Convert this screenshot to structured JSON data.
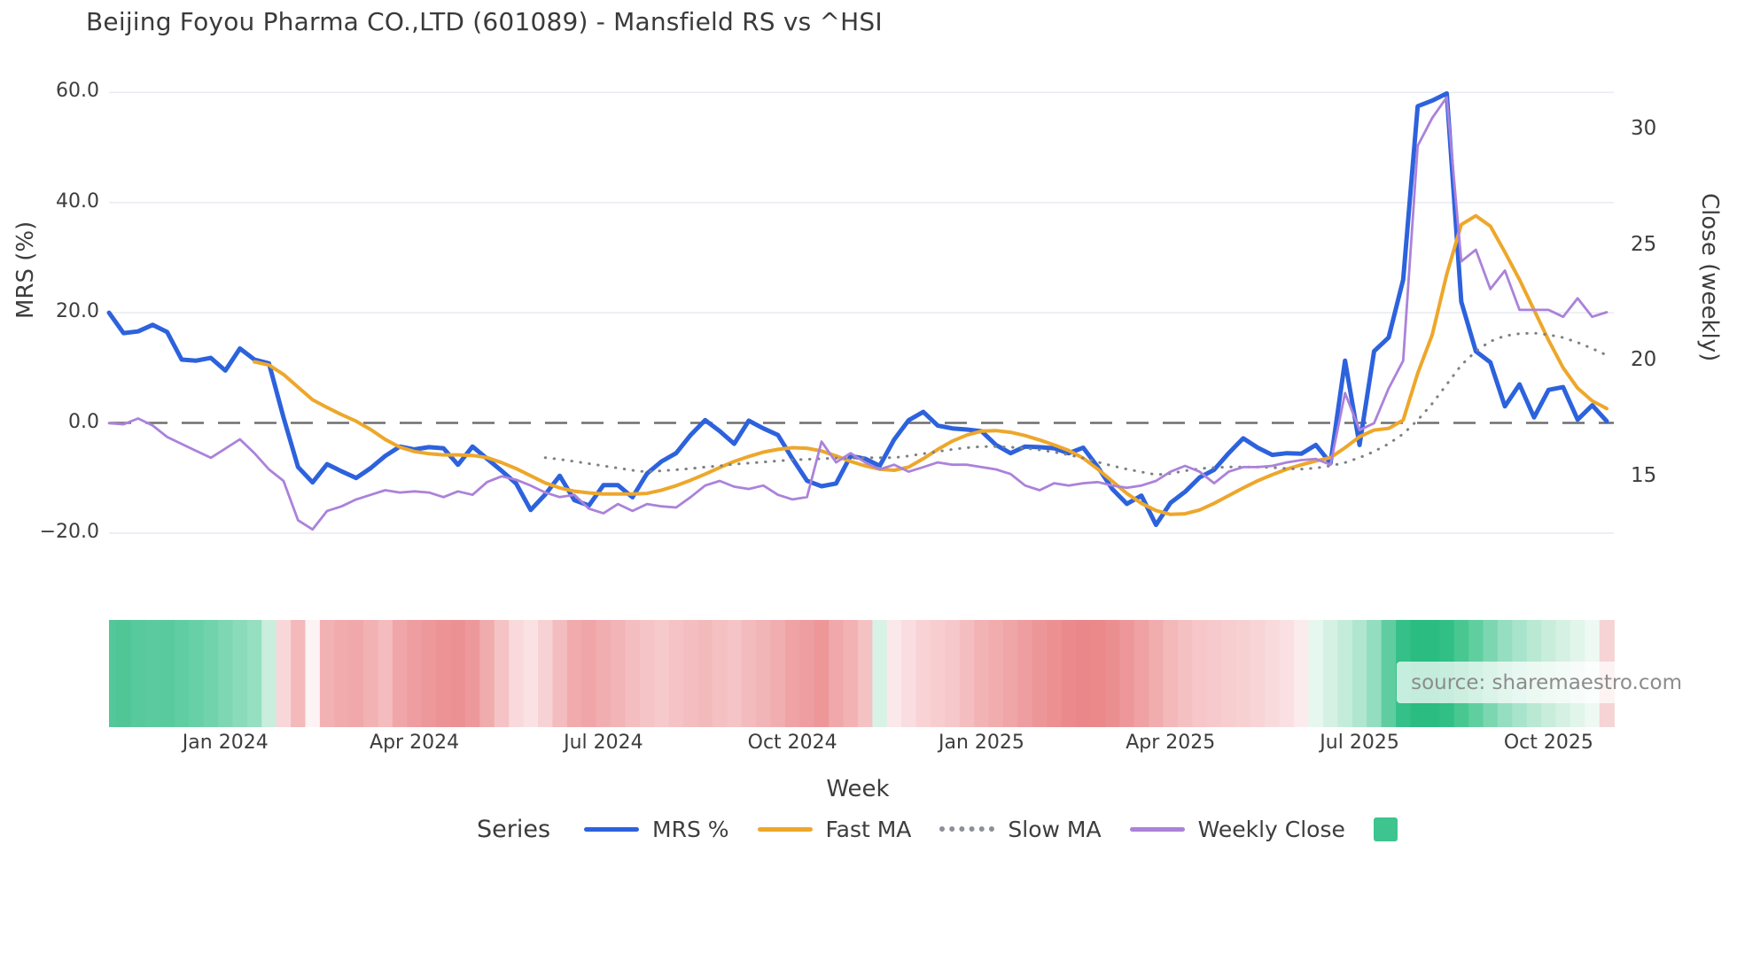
{
  "title": "Beijing Foyou Pharma CO.,LTD (601089) - Mansfield RS vs ^HSI",
  "axes": {
    "left_label": "MRS (%)",
    "right_label": "Close (weekly)",
    "x_label": "Week",
    "left_ticks": [
      {
        "label": "60.0",
        "value": 60
      },
      {
        "label": "40.0",
        "value": 40
      },
      {
        "label": "20.0",
        "value": 20
      },
      {
        "label": "0.0",
        "value": 0
      },
      {
        "label": "−20.0",
        "value": -20
      }
    ],
    "right_ticks": [
      {
        "label": "30",
        "value": 30
      },
      {
        "label": "25",
        "value": 25
      },
      {
        "label": "20",
        "value": 20
      },
      {
        "label": "15",
        "value": 15
      }
    ],
    "x_ticks": [
      {
        "label": "Jan 2024",
        "week": 8
      },
      {
        "label": "Apr 2024",
        "week": 21
      },
      {
        "label": "Jul 2024",
        "week": 34
      },
      {
        "label": "Oct 2024",
        "week": 47
      },
      {
        "label": "Jan 2025",
        "week": 60
      },
      {
        "label": "Apr 2025",
        "week": 73
      },
      {
        "label": "Jul 2025",
        "week": 86
      },
      {
        "label": "Oct 2025",
        "week": 99
      }
    ]
  },
  "legend": {
    "title": "Series",
    "items": [
      {
        "label": "MRS %",
        "color": "#2d62dd",
        "style": "solid"
      },
      {
        "label": "Fast MA",
        "color": "#edа72b",
        "style": "solid"
      },
      {
        "label": "Slow MA",
        "color": "#8b8f98",
        "style": "dotted"
      },
      {
        "label": "Weekly Close",
        "color": "#ab82da",
        "style": "solid"
      }
    ],
    "heatmap_swatch_color": "#3ec48e"
  },
  "source": "source: sharemaestro.com",
  "chart_data": {
    "type": "line",
    "title": "Beijing Foyou Pharma CO.,LTD (601089) - Mansfield RS vs ^HSI",
    "xlabel": "Week",
    "ylabel_left": "MRS (%)",
    "ylabel_right": "Close (weekly)",
    "n_weeks": 104,
    "x_start_week_of": "Nov 2023",
    "grid": true,
    "zero_line": true,
    "legend_position": "bottom",
    "left_ylim": [
      -25,
      63.5
    ],
    "right_ylim": [
      13.4,
      32.5
    ],
    "series": [
      {
        "name": "MRS %",
        "axis": "left",
        "color": "#2d62dd",
        "style": "solid",
        "width": 5,
        "values": [
          20.0,
          16.3,
          16.6,
          17.8,
          16.5,
          11.5,
          11.3,
          11.8,
          9.5,
          13.5,
          11.5,
          10.8,
          1.0,
          -8.0,
          -10.8,
          -7.5,
          -8.8,
          -10.0,
          -8.2,
          -6.0,
          -4.3,
          -4.8,
          -4.4,
          -4.6,
          -7.6,
          -4.3,
          -6.5,
          -8.7,
          -11.0,
          -15.8,
          -13.0,
          -9.6,
          -14.0,
          -15.0,
          -11.3,
          -11.3,
          -13.5,
          -9.2,
          -7.0,
          -5.5,
          -2.2,
          0.5,
          -1.5,
          -3.8,
          0.4,
          -1.0,
          -2.2,
          -6.5,
          -10.5,
          -11.5,
          -11.0,
          -6.0,
          -6.5,
          -7.8,
          -3.0,
          0.5,
          2.0,
          -0.5,
          -1.0,
          -1.2,
          -1.5,
          -4.0,
          -5.5,
          -4.3,
          -4.4,
          -4.6,
          -5.5,
          -4.5,
          -8.0,
          -12.0,
          -14.7,
          -13.2,
          -18.5,
          -14.5,
          -12.5,
          -9.9,
          -8.5,
          -5.5,
          -2.8,
          -4.5,
          -5.8,
          -5.5,
          -5.6,
          -4.0,
          -7.3,
          11.3,
          -4.0,
          13.0,
          15.5,
          26.0,
          57.5,
          58.5,
          59.8,
          22.0,
          13.0,
          11.0,
          3.0,
          7.0,
          1.0,
          6.0,
          6.5,
          0.6,
          3.2,
          0.3
        ]
      },
      {
        "name": "Fast MA",
        "axis": "left",
        "color": "#eda72b",
        "style": "solid",
        "width": 4,
        "values": [
          null,
          null,
          null,
          null,
          null,
          null,
          null,
          null,
          null,
          null,
          11.1,
          10.5,
          8.8,
          6.5,
          4.2,
          2.8,
          1.5,
          0.3,
          -1.2,
          -3.0,
          -4.4,
          -5.2,
          -5.6,
          -5.8,
          -5.8,
          -5.9,
          -6.3,
          -7.2,
          -8.3,
          -9.6,
          -10.9,
          -11.8,
          -12.4,
          -12.7,
          -12.9,
          -12.9,
          -12.9,
          -12.8,
          -12.2,
          -11.4,
          -10.4,
          -9.3,
          -8.1,
          -7.0,
          -6.1,
          -5.3,
          -4.8,
          -4.5,
          -4.6,
          -5.1,
          -6.0,
          -7.0,
          -7.8,
          -8.4,
          -8.6,
          -8.0,
          -6.5,
          -4.8,
          -3.3,
          -2.2,
          -1.5,
          -1.4,
          -1.7,
          -2.3,
          -3.1,
          -4.0,
          -5.0,
          -6.4,
          -8.4,
          -10.6,
          -12.8,
          -14.6,
          -15.9,
          -16.6,
          -16.5,
          -15.8,
          -14.6,
          -13.2,
          -11.8,
          -10.5,
          -9.4,
          -8.4,
          -7.6,
          -6.9,
          -6.3,
          -4.5,
          -2.5,
          -1.3,
          -1.0,
          0.5,
          9.0,
          16.0,
          27.0,
          36.0,
          37.6,
          35.7,
          31.0,
          26.0,
          20.5,
          15.0,
          10.0,
          6.3,
          4.0,
          2.6
        ]
      },
      {
        "name": "Slow MA",
        "axis": "left",
        "color": "#7d8085",
        "style": "dotted",
        "width": 3,
        "values": [
          null,
          null,
          null,
          null,
          null,
          null,
          null,
          null,
          null,
          null,
          null,
          null,
          null,
          null,
          null,
          null,
          null,
          null,
          null,
          null,
          null,
          null,
          null,
          null,
          null,
          null,
          null,
          null,
          null,
          null,
          -6.3,
          -6.6,
          -7.0,
          -7.4,
          -7.8,
          -8.2,
          -8.6,
          -8.9,
          -8.7,
          -8.5,
          -8.3,
          -8.0,
          -7.8,
          -7.5,
          -7.3,
          -7.1,
          -6.9,
          -6.7,
          -6.6,
          -6.5,
          -6.4,
          -6.4,
          -6.3,
          -6.3,
          -6.3,
          -6.0,
          -5.6,
          -5.2,
          -4.8,
          -4.5,
          -4.3,
          -4.3,
          -4.4,
          -4.6,
          -4.9,
          -5.3,
          -5.8,
          -6.4,
          -7.1,
          -7.8,
          -8.4,
          -8.9,
          -9.4,
          -9.2,
          -8.7,
          -8.3,
          -8.1,
          -8.0,
          -8.0,
          -8.0,
          -8.1,
          -8.3,
          -8.4,
          -8.2,
          -7.8,
          -7.2,
          -6.3,
          -5.2,
          -3.8,
          -2.0,
          0.5,
          3.5,
          7.0,
          10.5,
          13.0,
          14.8,
          15.8,
          16.2,
          16.3,
          16.0,
          15.5,
          14.6,
          13.5,
          12.3
        ]
      },
      {
        "name": "Weekly Close",
        "axis": "right",
        "color": "#ab82da",
        "style": "solid",
        "width": 2.8,
        "values": [
          17.3,
          17.25,
          17.5,
          17.2,
          16.7,
          16.4,
          16.1,
          15.8,
          16.2,
          16.6,
          16.0,
          15.3,
          14.8,
          13.1,
          12.7,
          13.5,
          13.7,
          14.0,
          14.2,
          14.4,
          14.3,
          14.35,
          14.3,
          14.1,
          14.35,
          14.2,
          14.75,
          15.0,
          14.85,
          14.6,
          14.3,
          14.1,
          14.2,
          13.6,
          13.4,
          13.8,
          13.5,
          13.8,
          13.7,
          13.65,
          14.1,
          14.6,
          14.8,
          14.55,
          14.45,
          14.6,
          14.2,
          14.0,
          14.1,
          16.5,
          15.6,
          16.0,
          15.6,
          15.3,
          15.5,
          15.2,
          15.4,
          15.6,
          15.5,
          15.5,
          15.4,
          15.3,
          15.1,
          14.6,
          14.4,
          14.7,
          14.6,
          14.7,
          14.75,
          14.6,
          14.5,
          14.6,
          14.8,
          15.2,
          15.45,
          15.2,
          14.7,
          15.2,
          15.4,
          15.4,
          15.45,
          15.6,
          15.7,
          15.75,
          15.5,
          18.6,
          17.0,
          17.3,
          18.8,
          20.0,
          29.3,
          30.5,
          31.4,
          24.3,
          24.8,
          23.1,
          23.9,
          22.2,
          22.2,
          22.2,
          21.9,
          22.7,
          21.9,
          22.1
        ]
      }
    ],
    "heatmap": {
      "description": "weekly relative-strength color strip below chart",
      "colors": [
        "#52c799",
        "#50c697",
        "#57c99c",
        "#5bca9e",
        "#59ca9d",
        "#60cda2",
        "#67d0a7",
        "#71d3ab",
        "#7dd7b2",
        "#8adbba",
        "#96dfc1",
        "#c9eedd",
        "#f9d6d9",
        "#f3b9bb",
        "#fdf3f4",
        "#f2b1b3",
        "#f1abad",
        "#f0a8aa",
        "#f2b2b4",
        "#f4bcbe",
        "#f0a6a8",
        "#ee9da0",
        "#ed989a",
        "#ec9395",
        "#ec9193",
        "#ed999b",
        "#f0abad",
        "#f5c3c5",
        "#f9d9db",
        "#fae2e4",
        "#f7d2d4",
        "#f3bdbf",
        "#f1abad",
        "#f0a6a8",
        "#f1aeb0",
        "#f2b4b6",
        "#f4bec0",
        "#f5c4c6",
        "#f6c9cb",
        "#f5c3c5",
        "#f4bec0",
        "#f3babc",
        "#f4c0c2",
        "#f5c4c6",
        "#f3bbbd",
        "#f2b5b7",
        "#f1aeb0",
        "#efa3a5",
        "#ee9da0",
        "#ed9799",
        "#f0a8aa",
        "#f2b2b4",
        "#f5c2c4",
        "#d9f2e6",
        "#fbe8ea",
        "#f9dde0",
        "#f8d2d4",
        "#f7cdd0",
        "#f6c8cb",
        "#f4bec0",
        "#f2b3b5",
        "#f1acae",
        "#f0a5a7",
        "#ee9da0",
        "#ed9698",
        "#ec9092",
        "#ea8a8c",
        "#ea878a",
        "#ea888a",
        "#eb8e90",
        "#ed979a",
        "#efa1a3",
        "#f1acae",
        "#f3b8ba",
        "#f5c0c2",
        "#f6c6c8",
        "#f6cacc",
        "#f7cdcf",
        "#f7d0d2",
        "#f8d4d6",
        "#f9dadc",
        "#fae0e2",
        "#fcebed",
        "#e6f7f0",
        "#d4f1e4",
        "#c4ecda",
        "#b0e6cf",
        "#93ddc0",
        "#5fcda0",
        "#35c089",
        "#2abc80",
        "#2abc80",
        "#32bf85",
        "#48c791",
        "#60cfa0",
        "#7cd7b1",
        "#96dec1",
        "#a8e3cb",
        "#b9e8d3",
        "#c8edda",
        "#d5f1e3",
        "#e2f5eb",
        "#eef9f3",
        "#f6d3d5"
      ]
    }
  }
}
